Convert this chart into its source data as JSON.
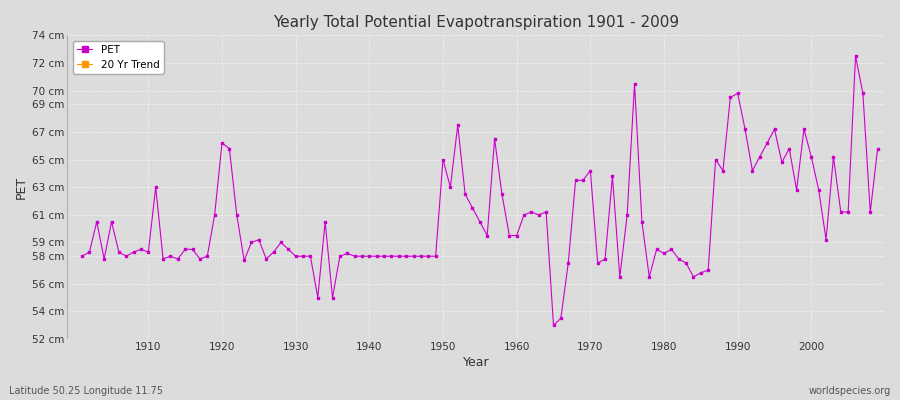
{
  "title": "Yearly Total Potential Evapotranspiration 1901 - 2009",
  "xlabel": "Year",
  "ylabel": "PET",
  "footnote_left": "Latitude 50.25 Longitude 11.75",
  "footnote_right": "worldspecies.org",
  "line_color": "#cc00cc",
  "trend_color": "#ff9900",
  "bg_color": "#dcdcdc",
  "grid_color": "#ffffff",
  "ylim": [
    52,
    74
  ],
  "xlim": [
    1899,
    2010
  ],
  "xtick_positions": [
    1910,
    1920,
    1930,
    1940,
    1950,
    1960,
    1970,
    1980,
    1990,
    2000
  ],
  "ytick_positions": [
    52,
    54,
    56,
    58,
    59,
    61,
    63,
    65,
    67,
    69,
    70,
    72,
    74
  ],
  "ytick_labels": [
    "52 cm",
    "54 cm",
    "56 cm",
    "58 cm",
    "59 cm",
    "61 cm",
    "63 cm",
    "65 cm",
    "67 cm",
    "69 cm",
    "70 cm",
    "72 cm",
    "74 cm"
  ],
  "years": [
    1901,
    1902,
    1903,
    1904,
    1905,
    1906,
    1907,
    1908,
    1909,
    1910,
    1911,
    1912,
    1913,
    1914,
    1915,
    1916,
    1917,
    1918,
    1919,
    1920,
    1921,
    1922,
    1923,
    1924,
    1925,
    1926,
    1927,
    1928,
    1929,
    1930,
    1931,
    1932,
    1933,
    1934,
    1935,
    1936,
    1937,
    1938,
    1939,
    1940,
    1941,
    1942,
    1943,
    1944,
    1945,
    1946,
    1947,
    1948,
    1949,
    1950,
    1951,
    1952,
    1953,
    1954,
    1955,
    1956,
    1957,
    1958,
    1959,
    1960,
    1961,
    1962,
    1963,
    1964,
    1965,
    1966,
    1967,
    1968,
    1969,
    1970,
    1971,
    1972,
    1973,
    1974,
    1975,
    1976,
    1977,
    1978,
    1979,
    1980,
    1981,
    1982,
    1983,
    1984,
    1985,
    1986,
    1987,
    1988,
    1989,
    1990,
    1991,
    1992,
    1993,
    1994,
    1995,
    1996,
    1997,
    1998,
    1999,
    2000,
    2001,
    2002,
    2003,
    2004,
    2005,
    2006,
    2007,
    2008,
    2009
  ],
  "values": [
    58.0,
    58.3,
    60.5,
    57.8,
    60.5,
    58.3,
    58.0,
    58.3,
    58.5,
    58.3,
    63.0,
    57.8,
    58.0,
    57.8,
    58.5,
    58.5,
    57.8,
    58.0,
    61.0,
    66.2,
    65.8,
    61.0,
    57.7,
    59.0,
    59.2,
    57.8,
    58.3,
    59.0,
    58.5,
    58.0,
    58.0,
    58.0,
    55.0,
    60.5,
    55.0,
    58.0,
    58.2,
    58.0,
    58.0,
    58.0,
    58.0,
    58.0,
    58.0,
    58.0,
    58.0,
    58.0,
    58.0,
    58.0,
    58.0,
    65.0,
    63.0,
    67.5,
    62.5,
    61.5,
    60.5,
    59.5,
    66.5,
    62.5,
    59.5,
    59.5,
    61.0,
    61.2,
    61.0,
    61.2,
    53.0,
    53.5,
    57.5,
    63.5,
    63.5,
    64.2,
    57.5,
    57.8,
    63.8,
    56.5,
    61.0,
    70.5,
    60.5,
    56.5,
    58.5,
    58.2,
    58.5,
    57.8,
    57.5,
    56.5,
    56.8,
    57.0,
    65.0,
    64.2,
    69.5,
    69.8,
    67.2,
    64.2,
    65.2,
    66.2,
    67.2,
    64.8,
    65.8,
    62.8,
    67.2,
    65.2,
    62.8,
    59.2,
    65.2,
    61.2,
    61.2,
    72.5,
    69.8,
    61.2,
    65.8
  ]
}
